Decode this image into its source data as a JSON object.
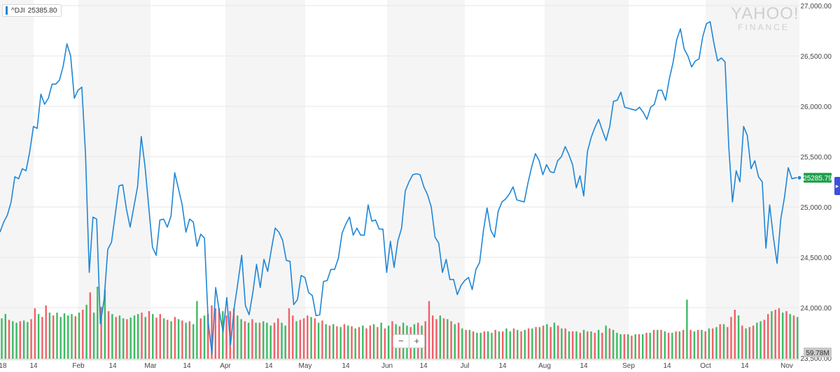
{
  "badge": {
    "ticker": "^DJI",
    "value": "25385.80"
  },
  "logo": {
    "line1": "YAHOO!",
    "line2": "FINANCE"
  },
  "zoom": {
    "minus": "−",
    "plus": "+"
  },
  "right_tab_icon": "chevron-right-icon",
  "colors": {
    "line": "#1e86d6",
    "up_volume": "#3dbb62",
    "down_volume": "#f06068",
    "last_price_label": "#21a04b",
    "volume_label": "#c8c8c8"
  },
  "chart_data": {
    "type": "line",
    "title": "",
    "xlabel": "",
    "ylabel": "",
    "ylim": [
      23500,
      27000
    ],
    "y_ticks": [
      "23,500.00",
      "24,000.00",
      "24,500.00",
      "25,000.00",
      "25,500.00",
      "26,000.00",
      "26,500.00",
      "27,000.00"
    ],
    "x_ticks": [
      "18",
      "14",
      "Feb",
      "14",
      "Mar",
      "14",
      "Apr",
      "14",
      "May",
      "14",
      "Jun",
      "14",
      "Jul",
      "14",
      "Aug",
      "14",
      "Sep",
      "14",
      "Oct",
      "14",
      "Nov"
    ],
    "last_price": "25285.79",
    "volume_label": "59.78M",
    "grid": "alternating vertical bands by month, light horizontal lines",
    "series": [
      {
        "values": [
          24750,
          24850,
          24920,
          25050,
          25300,
          25280,
          25380,
          25360,
          25550,
          25800,
          25780,
          26120,
          26020,
          26080,
          26220,
          26220,
          26260,
          26400,
          26620,
          26500,
          26080,
          26160,
          26190,
          25520,
          24350,
          24900,
          24880,
          23840,
          24080,
          24580,
          24650,
          24930,
          25210,
          25220,
          24980,
          24800,
          25000,
          25200,
          25700,
          25400,
          25000,
          24600,
          24520,
          24870,
          24880,
          24800,
          24910,
          25340,
          25180,
          25020,
          24750,
          24880,
          24850,
          24610,
          24730,
          24690,
          23850,
          23540,
          24200,
          23960,
          23760,
          24100,
          23630,
          24000,
          24250,
          24520,
          24020,
          23930,
          24150,
          24430,
          24200,
          24480,
          24360,
          24580,
          24790,
          24750,
          24670,
          24470,
          24460,
          24030,
          24080,
          24320,
          24300,
          24150,
          24120,
          23920,
          23930,
          24260,
          24270,
          24380,
          24380,
          24490,
          24740,
          24830,
          24900,
          24720,
          24790,
          24720,
          24720,
          25020,
          24860,
          24870,
          24780,
          24780,
          24350,
          24660,
          24400,
          24660,
          24790,
          25160,
          25250,
          25320,
          25330,
          25320,
          25200,
          25120,
          25000,
          24700,
          24640,
          24350,
          24480,
          24280,
          24280,
          24130,
          24220,
          24270,
          24300,
          24180,
          24380,
          24450,
          24760,
          24990,
          24770,
          24700,
          24960,
          25050,
          25080,
          25130,
          25200,
          25070,
          25060,
          25050,
          25240,
          25400,
          25530,
          25460,
          25320,
          25420,
          25350,
          25340,
          25460,
          25500,
          25600,
          25520,
          25420,
          25190,
          25310,
          25110,
          25550,
          25690,
          25790,
          25870,
          25760,
          25660,
          25800,
          26050,
          26060,
          26140,
          25990,
          25980,
          25970,
          25960,
          25990,
          25940,
          25870,
          25990,
          26020,
          26160,
          26160,
          26060,
          26270,
          26430,
          26660,
          26770,
          26570,
          26500,
          26390,
          26450,
          26470,
          26690,
          26820,
          26840,
          26630,
          26450,
          26480,
          26440,
          25600,
          25050,
          25360,
          25250,
          25800,
          25710,
          25380,
          25460,
          25300,
          25250,
          24590,
          25020,
          24700,
          24440,
          24880,
          25100,
          25390,
          25280,
          25290,
          25290
        ]
      }
    ],
    "volume": {
      "baseline": "59.78M",
      "bars": [
        [
          0.56,
          1
        ],
        [
          0.62,
          1
        ],
        [
          0.54,
          0
        ],
        [
          0.52,
          1
        ],
        [
          0.5,
          1
        ],
        [
          0.52,
          0
        ],
        [
          0.53,
          1
        ],
        [
          0.51,
          1
        ],
        [
          0.55,
          0
        ],
        [
          0.7,
          0
        ],
        [
          0.62,
          1
        ],
        [
          0.58,
          0
        ],
        [
          0.74,
          0
        ],
        [
          0.64,
          1
        ],
        [
          0.6,
          0
        ],
        [
          0.64,
          1
        ],
        [
          0.58,
          1
        ],
        [
          0.63,
          1
        ],
        [
          0.6,
          1
        ],
        [
          0.62,
          1
        ],
        [
          0.59,
          0
        ],
        [
          0.64,
          1
        ],
        [
          0.68,
          0
        ],
        [
          0.75,
          1
        ],
        [
          0.92,
          0
        ],
        [
          0.64,
          1
        ],
        [
          1.0,
          1
        ],
        [
          0.72,
          0
        ],
        [
          0.96,
          1
        ],
        [
          0.66,
          0
        ],
        [
          0.62,
          1
        ],
        [
          0.58,
          0
        ],
        [
          0.6,
          1
        ],
        [
          0.56,
          1
        ],
        [
          0.55,
          0
        ],
        [
          0.57,
          1
        ],
        [
          0.6,
          1
        ],
        [
          0.62,
          1
        ],
        [
          0.64,
          0
        ],
        [
          0.58,
          1
        ],
        [
          0.66,
          0
        ],
        [
          0.62,
          1
        ],
        [
          0.57,
          0
        ],
        [
          0.62,
          0
        ],
        [
          0.56,
          1
        ],
        [
          0.54,
          0
        ],
        [
          0.52,
          1
        ],
        [
          0.58,
          0
        ],
        [
          0.55,
          1
        ],
        [
          0.53,
          0
        ],
        [
          0.5,
          1
        ],
        [
          0.52,
          0
        ],
        [
          0.48,
          1
        ],
        [
          0.8,
          1
        ],
        [
          0.56,
          0
        ],
        [
          0.6,
          1
        ],
        [
          0.62,
          0
        ],
        [
          0.74,
          0
        ],
        [
          0.7,
          0
        ],
        [
          0.7,
          0
        ],
        [
          0.66,
          1
        ],
        [
          0.6,
          0
        ],
        [
          0.66,
          0
        ],
        [
          0.7,
          0
        ],
        [
          0.6,
          1
        ],
        [
          0.55,
          1
        ],
        [
          0.52,
          0
        ],
        [
          0.5,
          1
        ],
        [
          0.55,
          0
        ],
        [
          0.5,
          1
        ],
        [
          0.5,
          0
        ],
        [
          0.52,
          1
        ],
        [
          0.5,
          1
        ],
        [
          0.46,
          1
        ],
        [
          0.5,
          0
        ],
        [
          0.56,
          0
        ],
        [
          0.5,
          1
        ],
        [
          0.46,
          1
        ],
        [
          0.7,
          0
        ],
        [
          0.6,
          0
        ],
        [
          0.52,
          1
        ],
        [
          0.54,
          0
        ],
        [
          0.56,
          0
        ],
        [
          0.6,
          0
        ],
        [
          0.58,
          1
        ],
        [
          0.56,
          0
        ],
        [
          0.5,
          1
        ],
        [
          0.53,
          0
        ],
        [
          0.48,
          1
        ],
        [
          0.46,
          0
        ],
        [
          0.48,
          1
        ],
        [
          0.45,
          0
        ],
        [
          0.44,
          1
        ],
        [
          0.48,
          0
        ],
        [
          0.46,
          1
        ],
        [
          0.45,
          0
        ],
        [
          0.42,
          1
        ],
        [
          0.44,
          0
        ],
        [
          0.46,
          1
        ],
        [
          0.42,
          0
        ],
        [
          0.46,
          0
        ],
        [
          0.48,
          1
        ],
        [
          0.44,
          0
        ],
        [
          0.5,
          1
        ],
        [
          0.42,
          0
        ],
        [
          0.46,
          1
        ],
        [
          0.52,
          0
        ],
        [
          0.48,
          1
        ],
        [
          0.45,
          0
        ],
        [
          0.5,
          1
        ],
        [
          0.46,
          1
        ],
        [
          0.44,
          0
        ],
        [
          0.48,
          1
        ],
        [
          0.5,
          0
        ],
        [
          0.46,
          1
        ],
        [
          0.52,
          0
        ],
        [
          0.8,
          0
        ],
        [
          0.6,
          0
        ],
        [
          0.55,
          0
        ],
        [
          0.6,
          1
        ],
        [
          0.56,
          0
        ],
        [
          0.55,
          1
        ],
        [
          0.52,
          0
        ],
        [
          0.48,
          1
        ],
        [
          0.5,
          0
        ],
        [
          0.42,
          1
        ],
        [
          0.4,
          0
        ],
        [
          0.4,
          1
        ],
        [
          0.38,
          0
        ],
        [
          0.36,
          1
        ],
        [
          0.36,
          1
        ],
        [
          0.38,
          0
        ],
        [
          0.38,
          1
        ],
        [
          0.36,
          1
        ],
        [
          0.4,
          0
        ],
        [
          0.38,
          1
        ],
        [
          0.38,
          0
        ],
        [
          0.42,
          1
        ],
        [
          0.38,
          1
        ],
        [
          0.42,
          0
        ],
        [
          0.4,
          1
        ],
        [
          0.38,
          0
        ],
        [
          0.4,
          1
        ],
        [
          0.42,
          0
        ],
        [
          0.42,
          1
        ],
        [
          0.44,
          0
        ],
        [
          0.44,
          1
        ],
        [
          0.46,
          0
        ],
        [
          0.48,
          1
        ],
        [
          0.44,
          0
        ],
        [
          0.5,
          1
        ],
        [
          0.46,
          0
        ],
        [
          0.42,
          1
        ],
        [
          0.42,
          0
        ],
        [
          0.38,
          1
        ],
        [
          0.38,
          0
        ],
        [
          0.38,
          1
        ],
        [
          0.36,
          0
        ],
        [
          0.4,
          1
        ],
        [
          0.38,
          0
        ],
        [
          0.38,
          1
        ],
        [
          0.36,
          0
        ],
        [
          0.4,
          1
        ],
        [
          0.36,
          0
        ],
        [
          0.46,
          1
        ],
        [
          0.42,
          0
        ],
        [
          0.4,
          1
        ],
        [
          0.36,
          1
        ],
        [
          0.34,
          1
        ],
        [
          0.34,
          0
        ],
        [
          0.34,
          1
        ],
        [
          0.32,
          0
        ],
        [
          0.34,
          1
        ],
        [
          0.34,
          0
        ],
        [
          0.34,
          1
        ],
        [
          0.36,
          0
        ],
        [
          0.36,
          1
        ],
        [
          0.4,
          0
        ],
        [
          0.4,
          1
        ],
        [
          0.4,
          0
        ],
        [
          0.38,
          1
        ],
        [
          0.36,
          0
        ],
        [
          0.36,
          1
        ],
        [
          0.38,
          0
        ],
        [
          0.38,
          1
        ],
        [
          0.4,
          0
        ],
        [
          0.82,
          1
        ],
        [
          0.4,
          0
        ],
        [
          0.38,
          1
        ],
        [
          0.4,
          0
        ],
        [
          0.4,
          1
        ],
        [
          0.38,
          0
        ],
        [
          0.42,
          1
        ],
        [
          0.42,
          0
        ],
        [
          0.44,
          1
        ],
        [
          0.48,
          0
        ],
        [
          0.48,
          1
        ],
        [
          0.44,
          0
        ],
        [
          0.58,
          0
        ],
        [
          0.68,
          0
        ],
        [
          0.6,
          1
        ],
        [
          0.46,
          0
        ],
        [
          0.42,
          1
        ],
        [
          0.44,
          0
        ],
        [
          0.46,
          0
        ],
        [
          0.5,
          1
        ],
        [
          0.52,
          1
        ],
        [
          0.54,
          0
        ],
        [
          0.62,
          0
        ],
        [
          0.66,
          1
        ],
        [
          0.68,
          0
        ],
        [
          0.7,
          0
        ],
        [
          0.64,
          1
        ],
        [
          0.66,
          0
        ],
        [
          0.62,
          1
        ],
        [
          0.6,
          0
        ],
        [
          0.58,
          1
        ]
      ]
    }
  }
}
